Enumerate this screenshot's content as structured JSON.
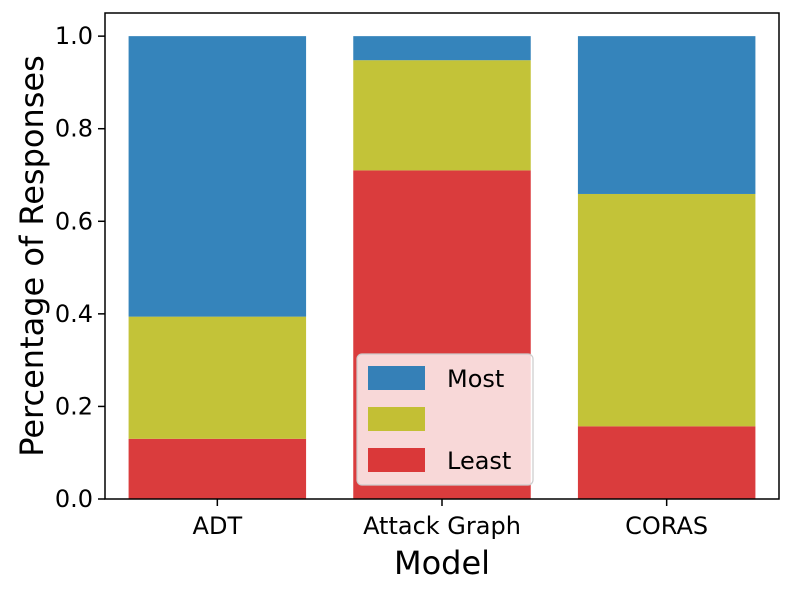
{
  "chart_data": {
    "type": "bar",
    "stacked": true,
    "categories": [
      "ADT",
      "Attack Graph",
      "CORAS"
    ],
    "series": [
      {
        "name": "Least",
        "color": "#d62728",
        "values": [
          0.13,
          0.71,
          0.157
        ]
      },
      {
        "name": "",
        "color": "#bcbd22",
        "values": [
          0.264,
          0.238,
          0.502
        ]
      },
      {
        "name": "Most",
        "color": "#1f77b4",
        "values": [
          0.606,
          0.052,
          0.341
        ]
      }
    ],
    "legend_order": [
      "Most",
      "",
      "Least"
    ],
    "legend_position": "lower center",
    "xlabel": "Model",
    "ylabel": "Percentage of Responses",
    "ylim": [
      0,
      1.05
    ],
    "yticks": [
      "0.0",
      "0.2",
      "0.4",
      "0.6",
      "0.8",
      "1.0"
    ],
    "grid": false
  }
}
